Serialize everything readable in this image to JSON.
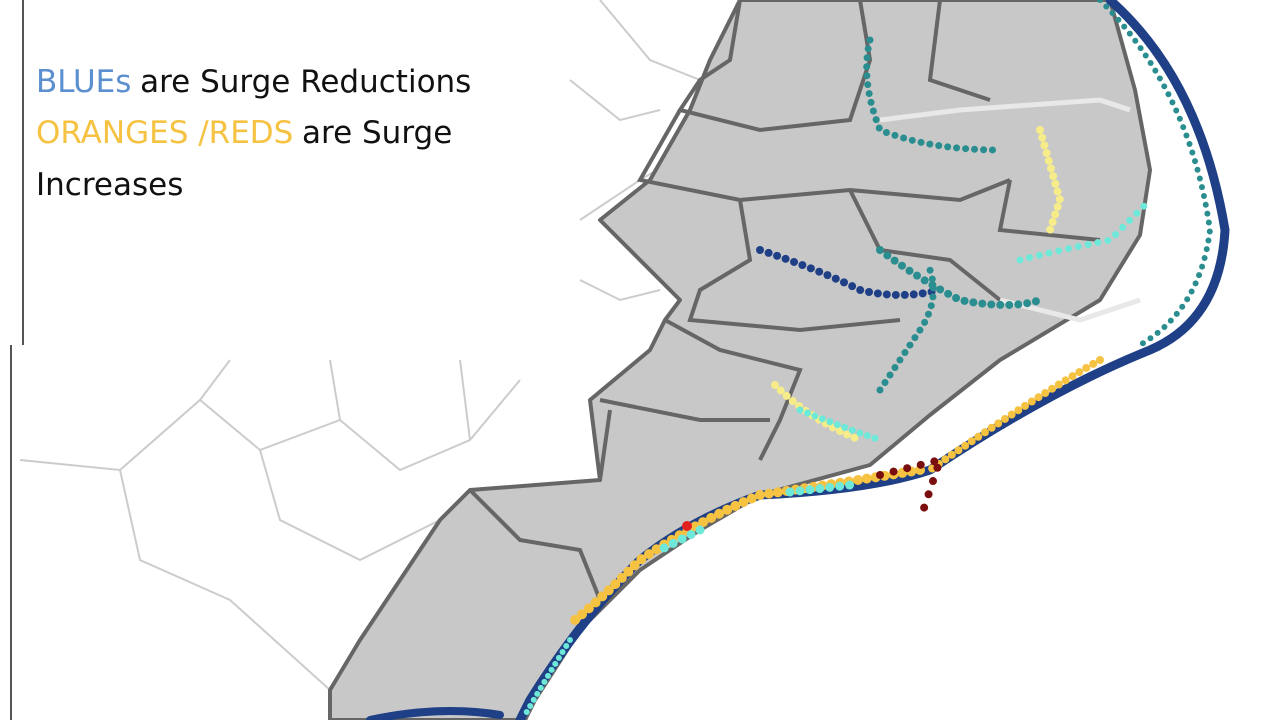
{
  "legend": {
    "lines": [
      {
        "parts": [
          {
            "text": "BLUEs",
            "color": "#5b8fcf"
          },
          {
            "text": "are Surge Reductions",
            "color": "#111111"
          }
        ]
      },
      {
        "parts": [
          {
            "text": "ORANGES /REDS",
            "color": "#f5c242"
          },
          {
            "text": "are Surge",
            "color": "#111111"
          }
        ]
      },
      {
        "parts": [
          {
            "text": "Increases",
            "color": "#111111"
          }
        ]
      }
    ]
  }
}
